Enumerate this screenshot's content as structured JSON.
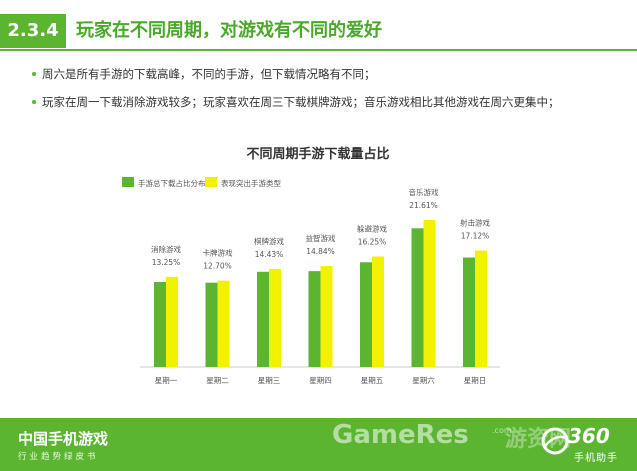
{
  "header": {
    "section_number": "2.3.4",
    "title": "玩家在不同周期，对游戏有不同的爱好"
  },
  "bullets": [
    "周六是所有手游的下载高峰，不同的手游，但下载情况略有不同；",
    "玩家在周一下载消除游戏较多；玩家喜欢在周三下载棋牌游戏；音乐游戏相比其他游戏在周六更集中；"
  ],
  "colors": {
    "accent": "#5cb531",
    "bar_green": "#5cb531",
    "bar_yellow": "#f2f200"
  },
  "chart_data": {
    "type": "bar",
    "title": "不同周期手游下载量占比",
    "categories": [
      "星期一",
      "星期二",
      "星期三",
      "星期四",
      "星期五",
      "星期六",
      "星期日"
    ],
    "series": [
      {
        "name": "手游总下载占比分布",
        "values": [
          12.5,
          12.4,
          14.0,
          14.1,
          15.4,
          20.4,
          16.1
        ]
      },
      {
        "name": "表现突出手游类型",
        "values": [
          13.25,
          12.7,
          14.43,
          14.84,
          16.25,
          21.61,
          17.12
        ]
      }
    ],
    "annotations": [
      {
        "label": "消除游戏",
        "value": "13.25%"
      },
      {
        "label": "卡牌游戏",
        "value": "12.70%"
      },
      {
        "label": "棋牌游戏",
        "value": "14.43%"
      },
      {
        "label": "益智游戏",
        "value": "14.84%"
      },
      {
        "label": "躲避游戏",
        "value": "16.25%"
      },
      {
        "label": "音乐游戏",
        "value": "21.61%"
      },
      {
        "label": "射击游戏",
        "value": "17.12%"
      }
    ],
    "ylim": [
      0,
      25
    ],
    "grid": false,
    "legend_position": "top-left"
  },
  "footer": {
    "report_title": "中国手机游戏",
    "report_subtitle": "行业趋势绿皮书",
    "watermark": "GameRes",
    "watermark_com": ".com",
    "watermark_cn": "游资网",
    "brand_number": "360",
    "brand_name": "手机助手"
  }
}
